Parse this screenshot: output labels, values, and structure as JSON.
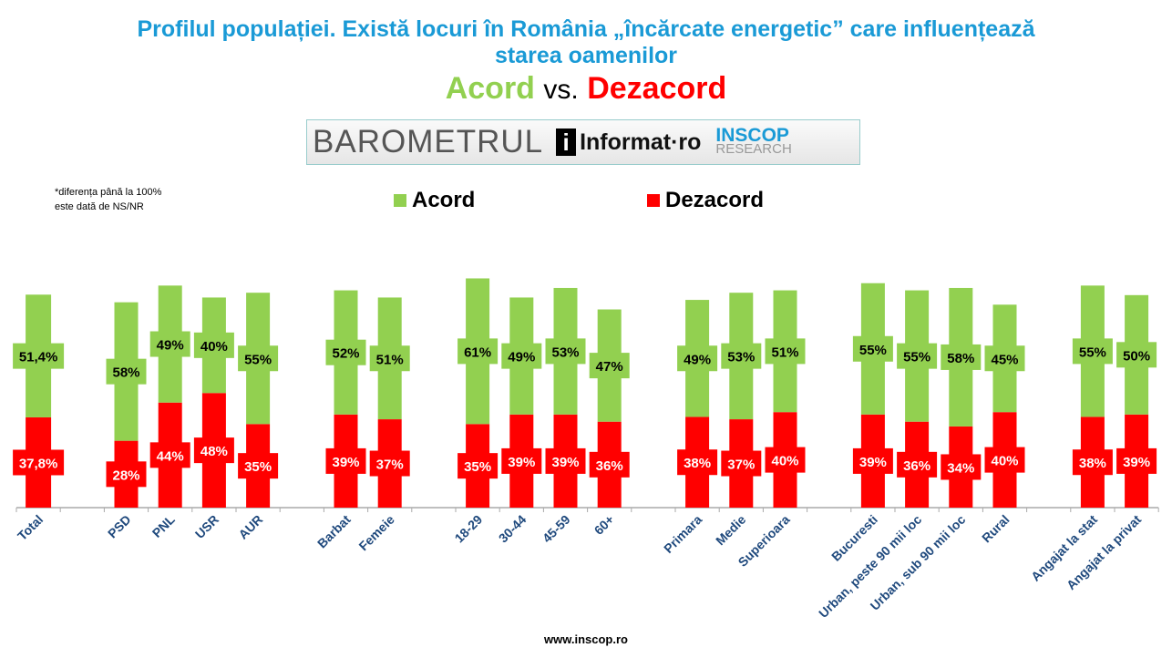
{
  "title_line1": "Profilul populației. Există locuri în România „încărcate energetic” care influențează",
  "title_line2": "starea oamenilor",
  "subtitle": {
    "agree": "Acord",
    "vs": "vs.",
    "disagree": "Dezacord"
  },
  "logo": {
    "barometrul": "BAROMETRUL",
    "i": "i",
    "informat": "Informat·ro",
    "inscop": "INSCOP",
    "research": "RESEARCH"
  },
  "note_line1": "*diferența până la 100%",
  "note_line2": "este dată de NS/NR",
  "footer": "www.inscop.ro",
  "colors": {
    "agree": "#92d050",
    "disagree": "#ff0000",
    "axis_label": "#1f497d",
    "title": "#1a9ad6"
  },
  "chart_data": {
    "type": "bar",
    "stacked": true,
    "legend": [
      "Acord",
      "Dezacord"
    ],
    "legend_position": "top",
    "categories": [
      "Total",
      "",
      "PSD",
      "PNL",
      "USR",
      "AUR",
      "",
      "Barbat",
      "Femeie",
      "",
      "18-29",
      "30-44",
      "45-59",
      "60+",
      "",
      "Primara",
      "Medie",
      "Superioara",
      "",
      "Bucuresti",
      "Urban, peste 90 mii loc",
      "Urban, sub 90 mii loc",
      "Rural",
      "",
      "Angajat la stat",
      "Angajat la privat"
    ],
    "series": [
      {
        "name": "Dezacord",
        "values": [
          37.8,
          null,
          28,
          44,
          48,
          35,
          null,
          39,
          37,
          null,
          35,
          39,
          39,
          36,
          null,
          38,
          37,
          40,
          null,
          39,
          36,
          34,
          40,
          null,
          38,
          39
        ],
        "labels": [
          "37,8%",
          "",
          "28%",
          "44%",
          "48%",
          "35%",
          "",
          "39%",
          "37%",
          "",
          "35%",
          "39%",
          "39%",
          "36%",
          "",
          "38%",
          "37%",
          "40%",
          "",
          "39%",
          "36%",
          "34%",
          "40%",
          "",
          "38%",
          "39%"
        ]
      },
      {
        "name": "Acord",
        "values": [
          51.4,
          null,
          58,
          49,
          40,
          55,
          null,
          52,
          51,
          null,
          61,
          49,
          53,
          47,
          null,
          49,
          53,
          51,
          null,
          55,
          55,
          58,
          45,
          null,
          55,
          50
        ],
        "labels": [
          "51,4%",
          "",
          "58%",
          "49%",
          "40%",
          "55%",
          "",
          "52%",
          "51%",
          "",
          "61%",
          "49%",
          "53%",
          "47%",
          "",
          "49%",
          "53%",
          "51%",
          "",
          "55%",
          "55%",
          "58%",
          "45%",
          "",
          "55%",
          "50%"
        ]
      }
    ],
    "ylim": [
      0,
      100
    ]
  }
}
